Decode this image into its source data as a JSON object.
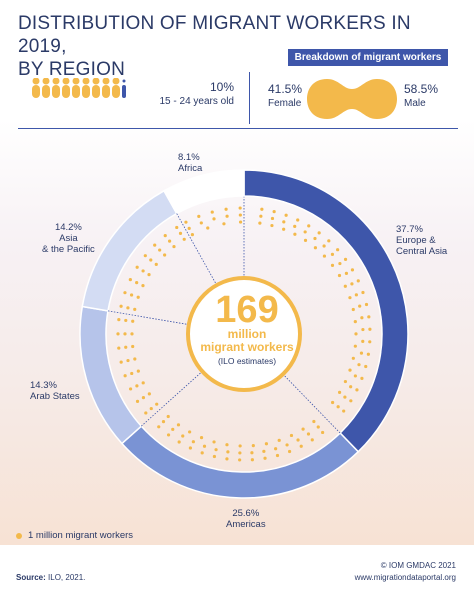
{
  "title_line1": "DISTRIBUTION OF MIGRANT WORKERS IN 2019,",
  "title_line2": "BY REGION",
  "breakdown_label": "Breakdown of migrant workers",
  "age": {
    "pct": "10%",
    "label": "15 - 24 years old",
    "figures_total": 10,
    "figures_highlighted": 1
  },
  "gender": {
    "female_pct": "41.5%",
    "female_label": "Female",
    "male_pct": "58.5%",
    "male_label": "Male"
  },
  "center": {
    "number": "169",
    "line1": "million",
    "line2": "migrant workers",
    "line3": "(ILO estimates)"
  },
  "legend_label": "1 million migrant workers",
  "source_label": "Source:",
  "source_text": "ILO, 2021.",
  "copyright": "© IOM GMDAC 2021",
  "website": "www.migrationdataportal.org",
  "colors": {
    "navy": "#2b3a67",
    "accent_blue": "#3e56aa",
    "gold": "#f3b94b"
  },
  "chart_data": {
    "type": "pie",
    "total": 169,
    "unit": "million migrant workers",
    "slices": [
      {
        "pct_label": "37.7%",
        "name_lines": [
          "Europe &",
          "Central Asia"
        ],
        "value": 37.7,
        "color": "#3e56aa"
      },
      {
        "pct_label": "25.6%",
        "name_lines": [
          "Americas"
        ],
        "value": 25.6,
        "color": "#7a93d4"
      },
      {
        "pct_label": "14.3%",
        "name_lines": [
          "Arab States"
        ],
        "value": 14.3,
        "color": "#b6c4ea"
      },
      {
        "pct_label": "14.2%",
        "name_lines": [
          "Asia",
          "& the Pacific"
        ],
        "value": 14.2,
        "color": "#d3dcf3"
      },
      {
        "pct_label": "8.1%",
        "name_lines": [
          "Africa"
        ],
        "value": 8.1,
        "color": "#ffffff"
      }
    ]
  }
}
